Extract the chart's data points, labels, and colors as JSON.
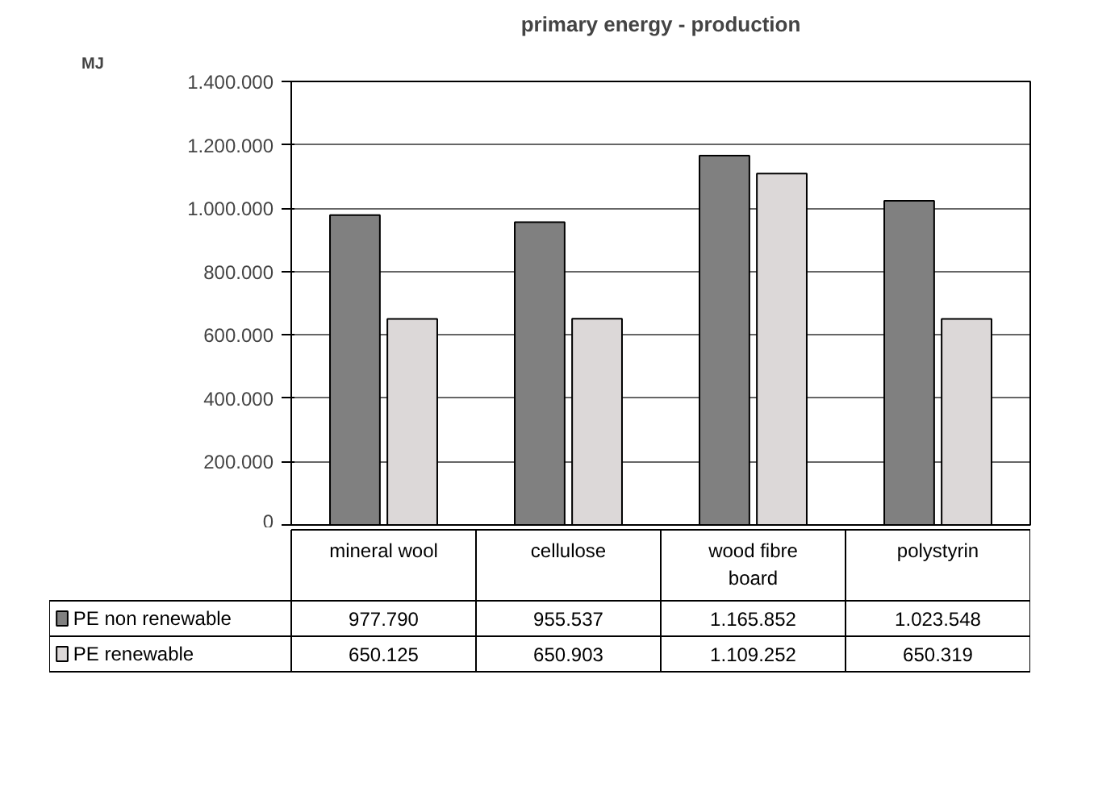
{
  "chart_data": {
    "type": "bar",
    "title": "primary energy - production",
    "annotations": [
      "MJ"
    ],
    "categories": [
      "mineral wool",
      "cellulose",
      "wood fibre board",
      "polystyrin"
    ],
    "series": [
      {
        "name": "PE non renewable",
        "color": "#808080",
        "values": [
          977790,
          955537,
          1165852,
          1023548
        ],
        "value_labels": [
          "977.790",
          "955.537",
          "1.165.852",
          "1.023.548"
        ]
      },
      {
        "name": "PE renewable",
        "color": "#dcd8d8",
        "values": [
          650125,
          650903,
          1109252,
          650319
        ],
        "value_labels": [
          "650.125",
          "650.903",
          "1.109.252",
          "650.319"
        ]
      }
    ],
    "ylim": [
      0,
      1400000
    ],
    "yticks": [
      {
        "value": 0,
        "label": "0"
      },
      {
        "value": 200000,
        "label": "200.000"
      },
      {
        "value": 400000,
        "label": "400.000"
      },
      {
        "value": 600000,
        "label": "600.000"
      },
      {
        "value": 800000,
        "label": "800.000"
      },
      {
        "value": 1000000,
        "label": "1.000.000"
      },
      {
        "value": 1200000,
        "label": "1.200.000"
      },
      {
        "value": 1400000,
        "label": "1.400.000"
      }
    ],
    "grid": "y",
    "legend": "bottom"
  }
}
